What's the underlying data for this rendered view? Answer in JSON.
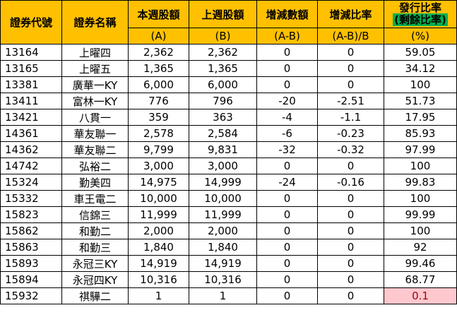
{
  "headers": {
    "code": "證券代號",
    "name": "證券名稱",
    "this_week": "本週股額",
    "last_week": "上週股額",
    "change": "增減數額",
    "change_ratio": "增減比率",
    "issue_ratio_line1": "發行比率",
    "issue_ratio_line2": "(剩餘比率)",
    "sub_a": "(A)",
    "sub_b": "(B)",
    "sub_ab": "(A-B)",
    "sub_ab_ratio": "(A-B)/B",
    "sub_pct": "(%)"
  },
  "colors": {
    "header_bg": "#ffc000",
    "green_mark": "#00b050",
    "highlight_bg": "#ffc7ce",
    "highlight_text": "#9c0006"
  },
  "rows": [
    {
      "code": "13164",
      "name": "上曜四",
      "a": "2,362",
      "b": "2,362",
      "diff": "0",
      "ratio": "0",
      "issue": "59.05"
    },
    {
      "code": "13165",
      "name": "上曜五",
      "a": "1,365",
      "b": "1,365",
      "diff": "0",
      "ratio": "0",
      "issue": "34.12"
    },
    {
      "code": "13381",
      "name": "廣華一KY",
      "a": "6,000",
      "b": "6,000",
      "diff": "0",
      "ratio": "0",
      "issue": "100"
    },
    {
      "code": "13411",
      "name": "富林一KY",
      "a": "776",
      "b": "796",
      "diff": "-20",
      "ratio": "-2.51",
      "issue": "51.73"
    },
    {
      "code": "13421",
      "name": "八貫一",
      "a": "359",
      "b": "363",
      "diff": "-4",
      "ratio": "-1.1",
      "issue": "17.95"
    },
    {
      "code": "14361",
      "name": "華友聯一",
      "a": "2,578",
      "b": "2,584",
      "diff": "-6",
      "ratio": "-0.23",
      "issue": "85.93"
    },
    {
      "code": "14362",
      "name": "華友聯二",
      "a": "9,799",
      "b": "9,831",
      "diff": "-32",
      "ratio": "-0.32",
      "issue": "97.99"
    },
    {
      "code": "14742",
      "name": "弘裕二",
      "a": "3,000",
      "b": "3,000",
      "diff": "0",
      "ratio": "0",
      "issue": "100"
    },
    {
      "code": "15324",
      "name": "勤美四",
      "a": "14,975",
      "b": "14,999",
      "diff": "-24",
      "ratio": "-0.16",
      "issue": "99.83"
    },
    {
      "code": "15332",
      "name": "車王電二",
      "a": "10,000",
      "b": "10,000",
      "diff": "0",
      "ratio": "0",
      "issue": "100"
    },
    {
      "code": "15823",
      "name": "信錦三",
      "a": "11,999",
      "b": "11,999",
      "diff": "0",
      "ratio": "0",
      "issue": "99.99"
    },
    {
      "code": "15862",
      "name": "和勤二",
      "a": "2,000",
      "b": "2,000",
      "diff": "0",
      "ratio": "0",
      "issue": "100"
    },
    {
      "code": "15863",
      "name": "和勤三",
      "a": "1,840",
      "b": "1,840",
      "diff": "0",
      "ratio": "0",
      "issue": "92"
    },
    {
      "code": "15893",
      "name": "永冠三KY",
      "a": "14,919",
      "b": "14,919",
      "diff": "0",
      "ratio": "0",
      "issue": "99.46"
    },
    {
      "code": "15894",
      "name": "永冠四KY",
      "a": "10,316",
      "b": "10,316",
      "diff": "0",
      "ratio": "0",
      "issue": "68.77"
    },
    {
      "code": "15932",
      "name": "祺驊二",
      "a": "1",
      "b": "1",
      "diff": "0",
      "ratio": "0",
      "issue": "0.1",
      "highlight": true
    }
  ]
}
